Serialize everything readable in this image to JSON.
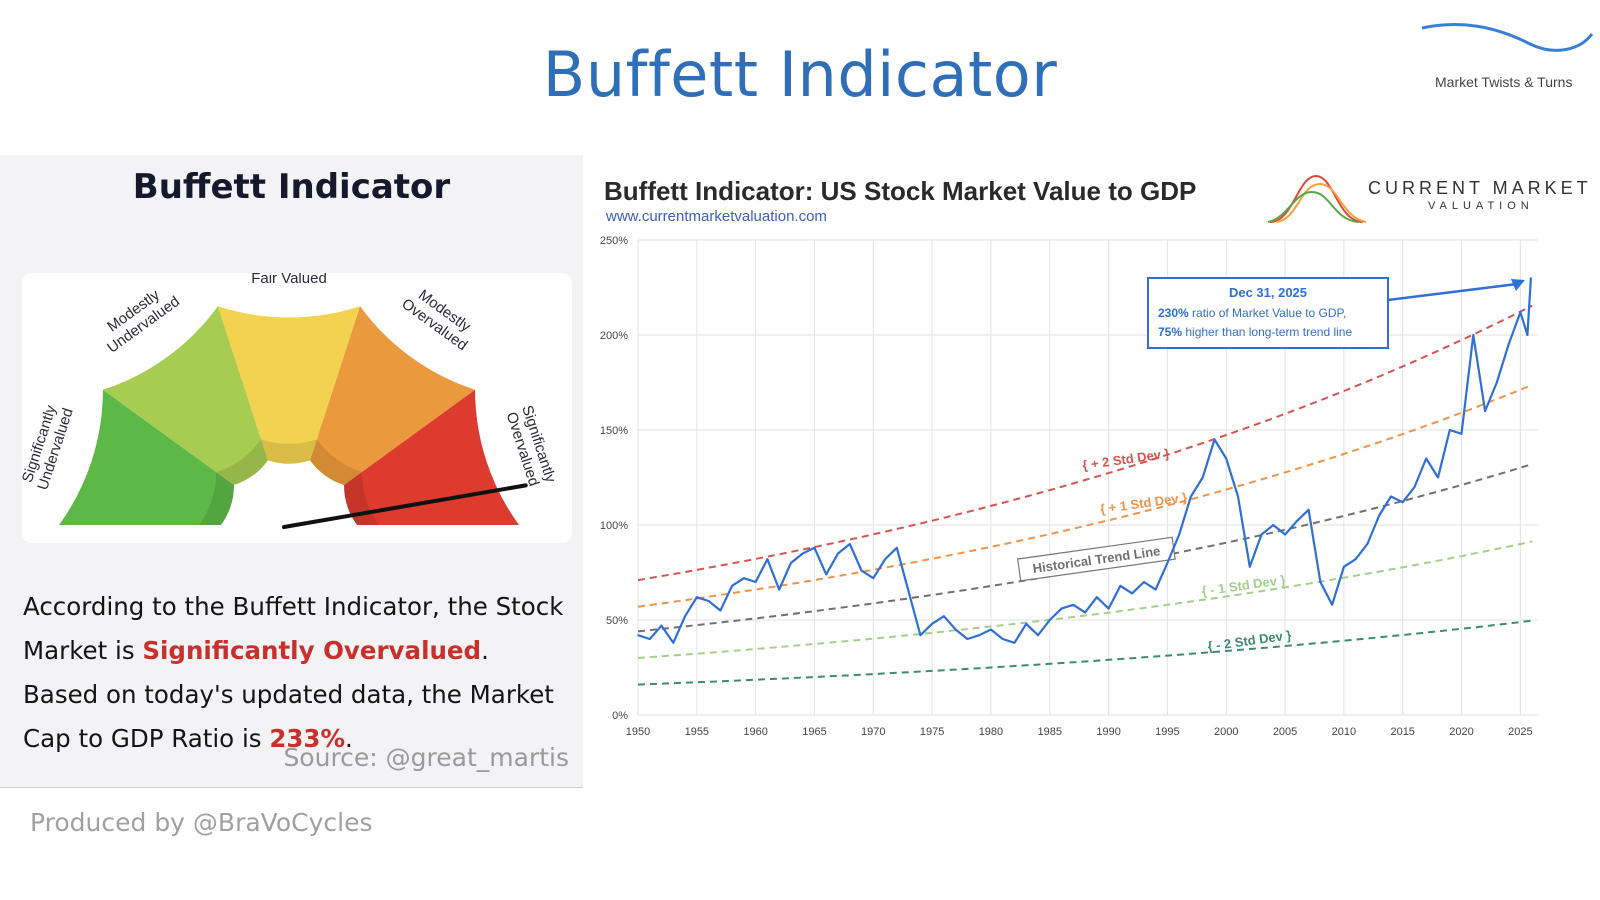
{
  "page": {
    "title": "Buffett Indicator",
    "brand": "Market Twists & Turns",
    "footer": "Produced by @BraVoCycles"
  },
  "gauge": {
    "title": "Buffett Indicator",
    "labels": {
      "sig_under": [
        "Significantly",
        "Undervalued"
      ],
      "mod_under": [
        "Modestly",
        "Undervalued"
      ],
      "fair": "Fair Valued",
      "mod_over": [
        "Modestly",
        "Overvalued"
      ],
      "sig_over": [
        "Significantly",
        "Overvalued"
      ]
    },
    "colors": [
      "#5cb847",
      "#a6cc52",
      "#f2d24e",
      "#ea9a3c",
      "#dc3b2e"
    ],
    "description": {
      "part1": "According to the Buffett Indicator, the Stock Market is ",
      "highlight1": "Significantly Overvalued",
      "part2": ". Based on today's updated data, the Market Cap to GDP Ratio is ",
      "highlight2": "233%",
      "part3": "."
    },
    "source": "Source: @great_martis"
  },
  "chart": {
    "title": "Buffett Indicator: US Stock Market Value to GDP",
    "url": "www.currentmarketvaluation.com",
    "logo": {
      "line1": "CURRENT MARKET",
      "line2": "VALUATION"
    }
  },
  "chart_data": {
    "type": "line",
    "title": "Buffett Indicator: US Stock Market Value to GDP",
    "xlabel": "",
    "ylabel": "",
    "xlim": [
      1950,
      2026.5
    ],
    "ylim": [
      0,
      250
    ],
    "yticks": [
      0,
      50,
      100,
      150,
      200,
      250
    ],
    "ytick_labels": [
      "0%",
      "50%",
      "100%",
      "150%",
      "200%",
      "250%"
    ],
    "xticks": [
      1950,
      1955,
      1960,
      1965,
      1970,
      1975,
      1980,
      1985,
      1990,
      1995,
      2000,
      2005,
      2010,
      2015,
      2020,
      2025
    ],
    "grid": true,
    "series": [
      {
        "color": "#2f6fd6",
        "x": [
          1950,
          1951,
          1952,
          1953,
          1954,
          1955,
          1956,
          1957,
          1958,
          1959,
          1960,
          1961,
          1962,
          1963,
          1964,
          1965,
          1966,
          1967,
          1968,
          1969,
          1970,
          1971,
          1972,
          1973,
          1974,
          1975,
          1976,
          1977,
          1978,
          1979,
          1980,
          1981,
          1982,
          1983,
          1984,
          1985,
          1986,
          1987,
          1988,
          1989,
          1990,
          1991,
          1992,
          1993,
          1994,
          1995,
          1996,
          1997,
          1998,
          1999,
          2000,
          2001,
          2002,
          2003,
          2004,
          2005,
          2006,
          2007,
          2008,
          2009,
          2010,
          2011,
          2012,
          2013,
          2014,
          2015,
          2016,
          2017,
          2018,
          2019,
          2020,
          2021,
          2022,
          2023,
          2024,
          2025,
          2025.6,
          2025.9
        ],
        "y": [
          42,
          40,
          47,
          38,
          52,
          62,
          60,
          55,
          68,
          72,
          70,
          82,
          66,
          80,
          85,
          88,
          74,
          85,
          90,
          76,
          72,
          82,
          88,
          65,
          42,
          48,
          52,
          45,
          40,
          42,
          45,
          40,
          38,
          48,
          42,
          50,
          56,
          58,
          54,
          62,
          56,
          68,
          64,
          70,
          66,
          80,
          95,
          115,
          125,
          145,
          135,
          115,
          78,
          95,
          100,
          95,
          102,
          108,
          70,
          58,
          78,
          82,
          90,
          105,
          115,
          112,
          120,
          135,
          125,
          150,
          148,
          200,
          160,
          175,
          195,
          212,
          200,
          230
        ]
      }
    ],
    "bands": [
      {
        "name": "+ 2 Std Dev",
        "color": "#d9534f",
        "start": 71,
        "end": 217
      },
      {
        "name": "+ 1 Std Dev",
        "color": "#f0944a",
        "start": 57,
        "end": 175
      },
      {
        "name": "Historical Trend Line",
        "color": "#707070",
        "start": 44,
        "end": 133
      },
      {
        "name": "- 1 Std Dev",
        "color": "#a3d08a",
        "start": 30,
        "end": 92
      },
      {
        "name": "- 2 Std Dev",
        "color": "#3e8c6a",
        "start": 16,
        "end": 50
      }
    ],
    "annotation": {
      "date": "Dec 31, 2025",
      "line1_bold": "230%",
      "line1_rest": " ratio of Market Value to GDP,",
      "line2_bold": "75%",
      "line2_rest": " higher than long-term trend line"
    }
  }
}
